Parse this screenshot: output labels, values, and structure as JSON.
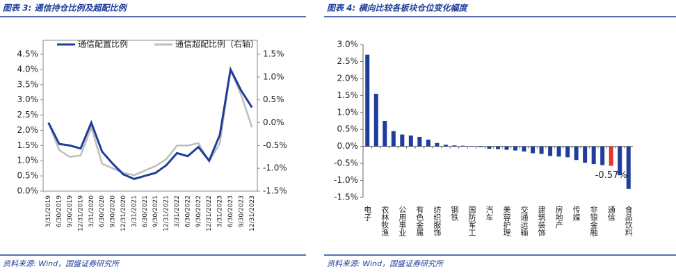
{
  "chart_data": [
    {
      "type": "line",
      "title": "图表 3: 通信持仓比例及超配比例",
      "source": "资料来源: Wind，国盛证券研究所",
      "categories": [
        "3/31/2019",
        "6/30/2019",
        "9/30/2019",
        "12/31/2019",
        "3/31/2020",
        "6/30/2020",
        "9/30/2020",
        "12/31/2020",
        "3/31/2021",
        "6/30/2021",
        "9/30/2021",
        "12/31/2021",
        "3/31/2022",
        "6/30/2022",
        "9/30/2022",
        "12/31/2022",
        "3/31/2023",
        "6/30/2023",
        "9/30/2023",
        "12/31/2023"
      ],
      "series": [
        {
          "name": "通信配置比例",
          "color": "#1f3d99",
          "values": [
            2.25,
            1.55,
            1.5,
            1.4,
            2.25,
            1.3,
            0.9,
            0.55,
            0.4,
            0.5,
            0.6,
            0.85,
            1.25,
            1.15,
            1.45,
            1.0,
            1.85,
            4.0,
            3.3,
            2.75
          ]
        },
        {
          "name": "通信超配比例（右轴）",
          "color": "#bdbdbd",
          "axis": "y2",
          "values": [
            0.0,
            -0.6,
            -0.75,
            -0.72,
            -0.1,
            -0.9,
            -1.0,
            -1.1,
            -1.15,
            -1.05,
            -0.95,
            -0.8,
            -0.5,
            -0.5,
            -0.45,
            -0.85,
            -0.45,
            1.15,
            0.6,
            -0.1
          ]
        }
      ],
      "ylim": [
        0,
        4.5
      ],
      "yticks": [
        {
          "value": 0,
          "label": "0.0%"
        },
        {
          "value": 0.5,
          "label": "0.5%"
        },
        {
          "value": 1,
          "label": "1.0%"
        },
        {
          "value": 1.5,
          "label": "1.5%"
        },
        {
          "value": 2,
          "label": "2.0%"
        },
        {
          "value": 2.5,
          "label": "2.5%"
        },
        {
          "value": 3,
          "label": "3.0%"
        },
        {
          "value": 3.5,
          "label": "3.5%"
        },
        {
          "value": 4,
          "label": "4.0%"
        },
        {
          "value": 4.5,
          "label": "4.5%"
        }
      ],
      "y2lim": [
        -1.5,
        1.5
      ],
      "y2ticks": [
        {
          "value": -1.5,
          "label": "-1.5%"
        },
        {
          "value": -1,
          "label": "-1.0%"
        },
        {
          "value": -0.5,
          "label": "-0.5%"
        },
        {
          "value": 0,
          "label": "0.0%"
        },
        {
          "value": 0.5,
          "label": "0.5%"
        },
        {
          "value": 1,
          "label": "1.0%"
        },
        {
          "value": 1.5,
          "label": "1.5%"
        }
      ]
    },
    {
      "type": "bar",
      "title": "图表 4: 横向比较各板块仓位变化幅度",
      "source": "资料来源: Wind，国盛证券研究所",
      "categories": [
        "电子",
        null,
        "农林牧渔",
        null,
        "公用事业",
        null,
        "有色金属",
        null,
        "纺织服饰",
        null,
        "钢铁",
        null,
        "国防军工",
        null,
        "汽车",
        null,
        "美容护理",
        null,
        "交通运输",
        null,
        "建筑装饰",
        null,
        "房地产",
        null,
        "传媒",
        null,
        "非银金融",
        null,
        "通信",
        null,
        "食品饮料"
      ],
      "values": [
        2.7,
        1.55,
        0.75,
        0.45,
        0.35,
        0.32,
        0.28,
        0.2,
        0.1,
        0.05,
        0.03,
        0.02,
        0.01,
        -0.02,
        -0.07,
        -0.08,
        -0.1,
        -0.12,
        -0.15,
        -0.2,
        -0.22,
        -0.28,
        -0.3,
        -0.32,
        -0.4,
        -0.48,
        -0.52,
        -0.55,
        -0.57,
        -0.85,
        -1.25
      ],
      "value_labels": [
        null,
        null,
        null,
        null,
        null,
        null,
        null,
        null,
        null,
        null,
        null,
        null,
        null,
        null,
        null,
        null,
        null,
        null,
        null,
        null,
        null,
        null,
        null,
        null,
        null,
        null,
        null,
        null,
        "-0.57%",
        null,
        null
      ],
      "colors": [
        "#1f3d99",
        "#1f3d99",
        "#1f3d99",
        "#1f3d99",
        "#1f3d99",
        "#1f3d99",
        "#1f3d99",
        "#1f3d99",
        "#1f3d99",
        "#1f3d99",
        "#1f3d99",
        "#1f3d99",
        "#1f3d99",
        "#1f3d99",
        "#1f3d99",
        "#1f3d99",
        "#1f3d99",
        "#1f3d99",
        "#1f3d99",
        "#1f3d99",
        "#1f3d99",
        "#1f3d99",
        "#1f3d99",
        "#1f3d99",
        "#1f3d99",
        "#1f3d99",
        "#1f3d99",
        "#1f3d99",
        "#e8312a",
        "#1f3d99",
        "#1f3d99"
      ],
      "ylim": [
        -1.5,
        3.0
      ],
      "yticks": [
        {
          "value": -1.5,
          "label": "-1.5%"
        },
        {
          "value": -1,
          "label": "-1.0%"
        },
        {
          "value": -0.5,
          "label": "-0.5%"
        },
        {
          "value": 0,
          "label": "0.0%"
        },
        {
          "value": 0.5,
          "label": "0.5%"
        },
        {
          "value": 1,
          "label": "1.0%"
        },
        {
          "value": 1.5,
          "label": "1.5%"
        },
        {
          "value": 2,
          "label": "2.0%"
        },
        {
          "value": 2.5,
          "label": "2.5%"
        },
        {
          "value": 3,
          "label": "3.0%"
        }
      ]
    }
  ]
}
